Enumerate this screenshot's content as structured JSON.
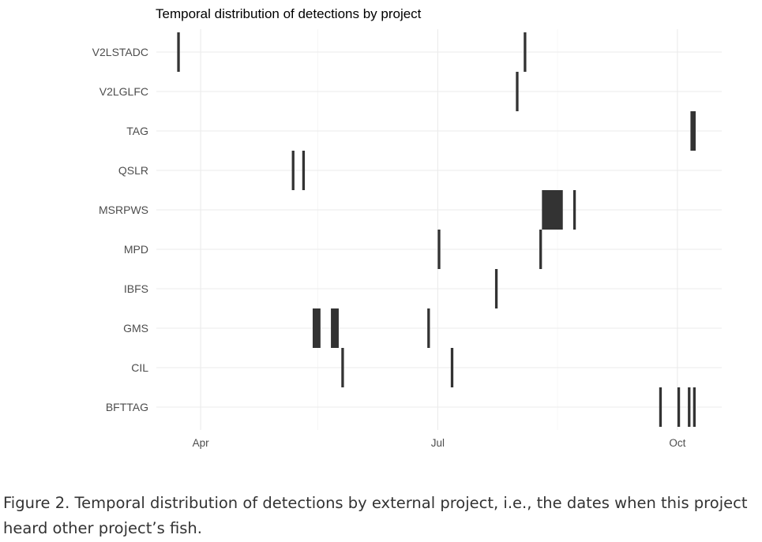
{
  "chart_data": {
    "type": "timeline",
    "title": "Temporal distribution of detections by project",
    "xlabel": "",
    "ylabel": "",
    "x_axis": {
      "type": "date",
      "range": [
        "2019-03-15",
        "2019-10-18"
      ],
      "ticks": [
        {
          "date": "2019-04-01",
          "label": "Apr"
        },
        {
          "date": "2019-07-01",
          "label": "Jul"
        },
        {
          "date": "2019-10-01",
          "label": "Oct"
        }
      ],
      "minor_ticks": [
        "2019-05-16",
        "2019-08-16"
      ]
    },
    "categories": [
      "V2LSTADC",
      "V2LGLFC",
      "TAG",
      "QSLR",
      "MSRPWS",
      "MPD",
      "IBFS",
      "GMS",
      "CIL",
      "BFTTAG"
    ],
    "grid": true,
    "bar_color": "#333333",
    "series": [
      {
        "category": "V2LSTADC",
        "intervals": [
          [
            "2019-03-23",
            "2019-03-24"
          ],
          [
            "2019-08-03",
            "2019-08-04"
          ]
        ]
      },
      {
        "category": "V2LGLFC",
        "intervals": [
          [
            "2019-07-31",
            "2019-08-01"
          ]
        ]
      },
      {
        "category": "TAG",
        "intervals": [
          [
            "2019-10-06",
            "2019-10-08"
          ]
        ]
      },
      {
        "category": "QSLR",
        "intervals": [
          [
            "2019-05-06",
            "2019-05-07"
          ],
          [
            "2019-05-10",
            "2019-05-11"
          ]
        ]
      },
      {
        "category": "MSRPWS",
        "intervals": [
          [
            "2019-08-10",
            "2019-08-18"
          ],
          [
            "2019-08-22",
            "2019-08-23"
          ]
        ]
      },
      {
        "category": "MPD",
        "intervals": [
          [
            "2019-07-01",
            "2019-07-02"
          ],
          [
            "2019-08-09",
            "2019-08-10"
          ]
        ]
      },
      {
        "category": "IBFS",
        "intervals": [
          [
            "2019-07-23",
            "2019-07-24"
          ]
        ]
      },
      {
        "category": "GMS",
        "intervals": [
          [
            "2019-05-14",
            "2019-05-17"
          ],
          [
            "2019-05-21",
            "2019-05-24"
          ],
          [
            "2019-06-27",
            "2019-06-28"
          ]
        ]
      },
      {
        "category": "CIL",
        "intervals": [
          [
            "2019-05-25",
            "2019-05-26"
          ],
          [
            "2019-07-06",
            "2019-07-07"
          ]
        ]
      },
      {
        "category": "BFTTAG",
        "intervals": [
          [
            "2019-09-24",
            "2019-09-25"
          ],
          [
            "2019-10-01",
            "2019-10-02"
          ],
          [
            "2019-10-05",
            "2019-10-06"
          ],
          [
            "2019-10-07",
            "2019-10-08"
          ]
        ]
      }
    ]
  },
  "caption": "Figure 2. Temporal distribution of detections by external project, i.e., the dates when this project heard other project’s fish."
}
